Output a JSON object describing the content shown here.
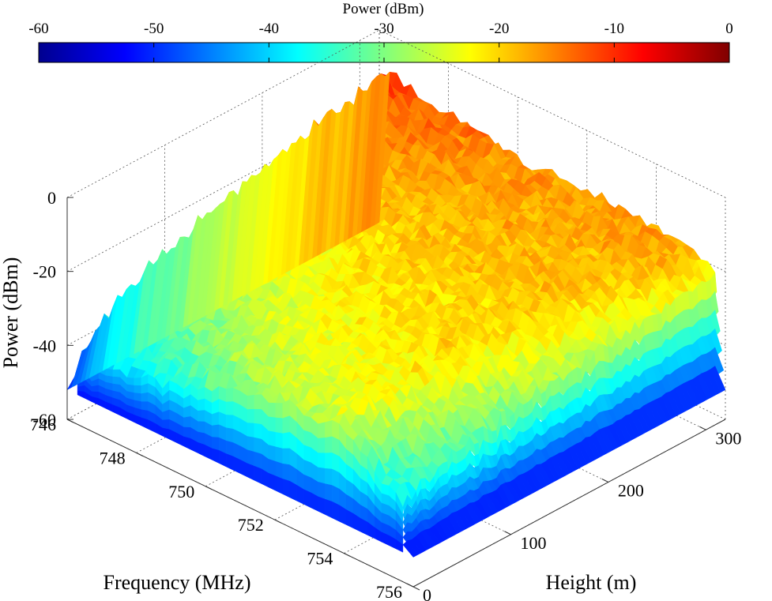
{
  "chart_data": {
    "type": "surface",
    "colorbar": {
      "title": "Power (dBm)",
      "ticks": [
        "-60",
        "-50",
        "-40",
        "-30",
        "-20",
        "-10",
        "0"
      ],
      "range": [
        -60,
        0
      ],
      "colormap": "jet"
    },
    "axes": {
      "x": {
        "label": "Frequency (MHz)",
        "range": [
          746,
          756
        ],
        "ticks": [
          "746",
          "748",
          "750",
          "752",
          "754",
          "756"
        ]
      },
      "y": {
        "label": "Height (m)",
        "range": [
          0,
          320
        ],
        "ticks": [
          "0",
          "100",
          "200",
          "300"
        ]
      },
      "z": {
        "label": "Power (dBm)",
        "range": [
          -60,
          0
        ],
        "ticks": [
          "0",
          "-20",
          "-40",
          "-60"
        ]
      }
    },
    "grid": true,
    "surface": {
      "band_occupied_mhz": [
        746.3,
        755.7
      ],
      "edge_start_mhz": 746.0,
      "edge_end_mhz": 756.0,
      "edge_floor_dbm": -52,
      "profile_mhz": [
        746.3,
        747,
        748,
        749,
        750,
        751,
        752,
        753,
        754,
        755,
        755.7
      ],
      "power_at_0m": [
        -44,
        -42,
        -40,
        -37,
        -33,
        -30,
        -28,
        -27,
        -26,
        -35,
        -40
      ],
      "power_at_320m": [
        -9,
        -13,
        -14,
        -15,
        -16,
        -16,
        -17,
        -17,
        -17,
        -18,
        -22
      ]
    }
  }
}
